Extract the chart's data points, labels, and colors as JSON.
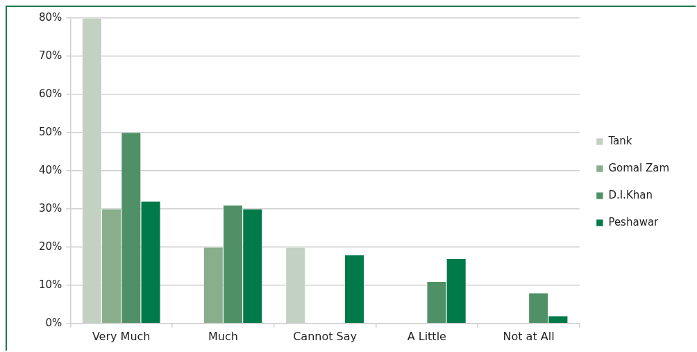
{
  "chart_data": {
    "type": "bar",
    "categories": [
      "Very Much",
      "Much",
      "Cannot Say",
      "A Little",
      "Not at All"
    ],
    "series": [
      {
        "name": "Tank",
        "color": "#c2d1c2",
        "values": [
          80,
          0,
          20,
          0,
          0
        ]
      },
      {
        "name": "Gomal Zam",
        "color": "#8aad8c",
        "values": [
          30,
          20,
          0,
          0,
          0
        ]
      },
      {
        "name": "D.I.Khan",
        "color": "#4f9066",
        "values": [
          50,
          31,
          0,
          11,
          8
        ]
      },
      {
        "name": "Peshawar",
        "color": "#007a48",
        "values": [
          32,
          30,
          18,
          17,
          2
        ]
      }
    ],
    "ylim": [
      0,
      80
    ],
    "yticks": [
      {
        "value": 0,
        "label": "0%"
      },
      {
        "value": 10,
        "label": "10%"
      },
      {
        "value": 20,
        "label": "20%"
      },
      {
        "value": 30,
        "label": "30%"
      },
      {
        "value": 40,
        "label": "40%"
      },
      {
        "value": 50,
        "label": "50%"
      },
      {
        "value": 60,
        "label": "60%"
      },
      {
        "value": 70,
        "label": "70%"
      },
      {
        "value": 80,
        "label": "80%"
      }
    ],
    "grid": "y",
    "legend": "right"
  }
}
